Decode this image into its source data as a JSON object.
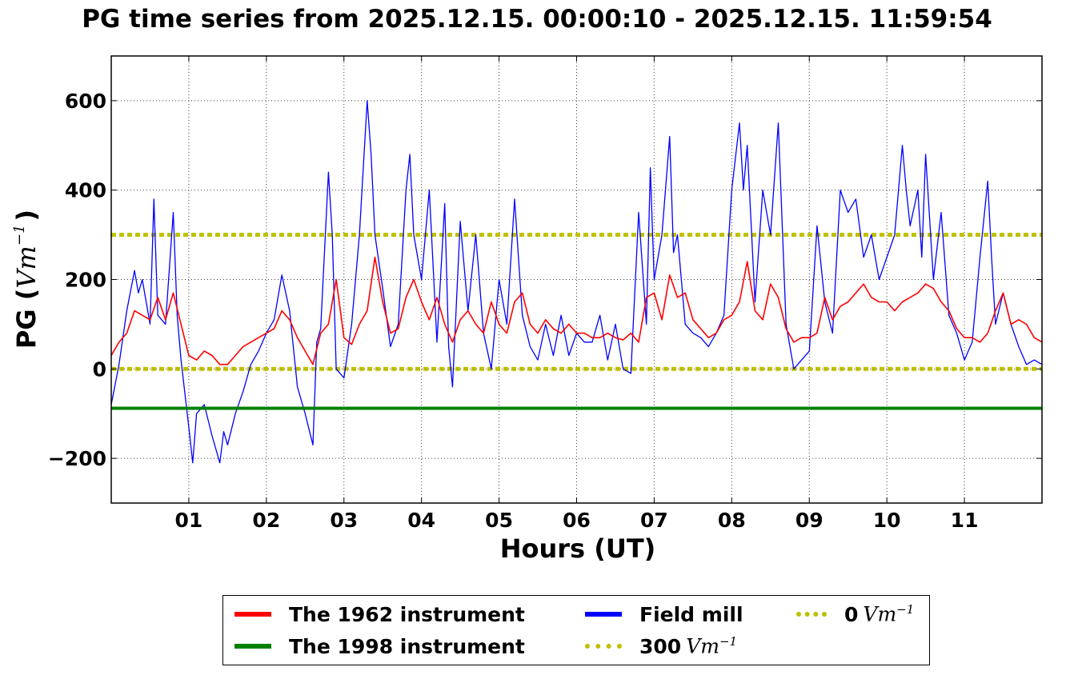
{
  "chart_data": {
    "type": "line",
    "title": "PG time series from 2025.12.15. 00:00:10 - 2025.12.15. 11:59:54",
    "xlabel": "Hours (UT)",
    "ylabel": "PG (Vm⁻¹)",
    "ylabel_main": "PG (",
    "ylabel_unit": "Vm",
    "ylabel_exp": "−1",
    "ylabel_close": ")",
    "xlim": [
      0,
      12
    ],
    "ylim": [
      -300,
      700
    ],
    "x_ticks": [
      1,
      2,
      3,
      4,
      5,
      6,
      7,
      8,
      9,
      10,
      11
    ],
    "x_tick_labels": [
      "01",
      "02",
      "03",
      "04",
      "05",
      "06",
      "07",
      "08",
      "09",
      "10",
      "11"
    ],
    "y_ticks": [
      -200,
      0,
      200,
      400,
      600
    ],
    "y_tick_labels": [
      "−200",
      "0",
      "200",
      "400",
      "600"
    ],
    "grid": true,
    "legend_position": "bottom-center",
    "series": [
      {
        "name": "The 1962 instrument",
        "color": "#ff0000",
        "x": [
          0.0,
          0.1,
          0.2,
          0.3,
          0.4,
          0.5,
          0.6,
          0.7,
          0.8,
          0.9,
          1.0,
          1.1,
          1.2,
          1.3,
          1.4,
          1.5,
          1.6,
          1.7,
          1.8,
          1.9,
          2.0,
          2.1,
          2.2,
          2.3,
          2.4,
          2.5,
          2.6,
          2.7,
          2.8,
          2.9,
          3.0,
          3.1,
          3.2,
          3.3,
          3.4,
          3.5,
          3.6,
          3.7,
          3.8,
          3.9,
          4.0,
          4.1,
          4.2,
          4.3,
          4.4,
          4.5,
          4.6,
          4.7,
          4.8,
          4.9,
          5.0,
          5.1,
          5.2,
          5.3,
          5.4,
          5.5,
          5.6,
          5.7,
          5.8,
          5.9,
          6.0,
          6.1,
          6.2,
          6.3,
          6.4,
          6.5,
          6.6,
          6.7,
          6.8,
          6.9,
          7.0,
          7.1,
          7.2,
          7.3,
          7.4,
          7.5,
          7.6,
          7.7,
          7.8,
          7.9,
          8.0,
          8.1,
          8.2,
          8.3,
          8.4,
          8.5,
          8.6,
          8.7,
          8.8,
          8.9,
          9.0,
          9.1,
          9.2,
          9.3,
          9.4,
          9.5,
          9.6,
          9.7,
          9.8,
          9.9,
          10.0,
          10.1,
          10.2,
          10.3,
          10.4,
          10.5,
          10.6,
          10.7,
          10.8,
          10.9,
          11.0,
          11.1,
          11.2,
          11.3,
          11.4,
          11.5,
          11.6,
          11.7,
          11.8,
          11.9,
          12.0
        ],
        "values": [
          30,
          60,
          80,
          130,
          120,
          110,
          160,
          110,
          170,
          100,
          30,
          20,
          40,
          30,
          10,
          10,
          30,
          50,
          60,
          70,
          80,
          90,
          130,
          110,
          70,
          40,
          10,
          80,
          100,
          200,
          70,
          55,
          100,
          130,
          250,
          150,
          80,
          90,
          160,
          200,
          150,
          110,
          160,
          100,
          60,
          110,
          130,
          100,
          80,
          150,
          100,
          80,
          150,
          170,
          100,
          80,
          110,
          90,
          80,
          100,
          80,
          80,
          70,
          70,
          80,
          70,
          65,
          80,
          60,
          160,
          170,
          110,
          210,
          160,
          170,
          110,
          90,
          70,
          80,
          110,
          120,
          150,
          240,
          130,
          110,
          190,
          160,
          90,
          60,
          70,
          70,
          80,
          160,
          110,
          140,
          150,
          170,
          190,
          160,
          150,
          150,
          130,
          150,
          160,
          170,
          190,
          180,
          150,
          130,
          90,
          70,
          70,
          60,
          80,
          130,
          170,
          100,
          110,
          100,
          70,
          60
        ]
      },
      {
        "name": "The 1998 instrument",
        "color": "#008000",
        "x": [
          0,
          12
        ],
        "values": [
          -88,
          -88
        ]
      },
      {
        "name": "Field mill",
        "color": "#0000ff",
        "x": [
          0.0,
          0.1,
          0.2,
          0.3,
          0.35,
          0.4,
          0.5,
          0.55,
          0.6,
          0.7,
          0.8,
          0.85,
          0.9,
          1.0,
          1.05,
          1.1,
          1.2,
          1.3,
          1.4,
          1.45,
          1.5,
          1.6,
          1.7,
          1.8,
          1.9,
          2.0,
          2.1,
          2.2,
          2.3,
          2.4,
          2.5,
          2.6,
          2.65,
          2.7,
          2.8,
          2.85,
          2.9,
          3.0,
          3.1,
          3.2,
          3.3,
          3.35,
          3.4,
          3.5,
          3.6,
          3.7,
          3.8,
          3.85,
          3.9,
          4.0,
          4.1,
          4.2,
          4.3,
          4.35,
          4.4,
          4.5,
          4.6,
          4.7,
          4.8,
          4.9,
          5.0,
          5.1,
          5.2,
          5.25,
          5.3,
          5.4,
          5.5,
          5.6,
          5.7,
          5.8,
          5.9,
          6.0,
          6.1,
          6.2,
          6.3,
          6.4,
          6.5,
          6.6,
          6.7,
          6.8,
          6.9,
          6.95,
          7.0,
          7.1,
          7.2,
          7.25,
          7.3,
          7.4,
          7.5,
          7.6,
          7.7,
          7.8,
          7.9,
          8.0,
          8.1,
          8.15,
          8.2,
          8.3,
          8.4,
          8.5,
          8.6,
          8.7,
          8.8,
          8.9,
          9.0,
          9.1,
          9.2,
          9.3,
          9.4,
          9.5,
          9.6,
          9.7,
          9.8,
          9.9,
          10.0,
          10.1,
          10.2,
          10.25,
          10.3,
          10.4,
          10.45,
          10.5,
          10.6,
          10.7,
          10.8,
          10.9,
          11.0,
          11.1,
          11.2,
          11.3,
          11.35,
          11.4,
          11.5,
          11.6,
          11.7,
          11.8,
          11.9,
          12.0
        ],
        "values": [
          -80,
          10,
          130,
          220,
          170,
          200,
          100,
          380,
          120,
          100,
          350,
          120,
          20,
          -130,
          -210,
          -100,
          -80,
          -150,
          -210,
          -140,
          -170,
          -100,
          -50,
          10,
          40,
          80,
          110,
          210,
          130,
          -40,
          -100,
          -170,
          60,
          90,
          440,
          300,
          0,
          -20,
          100,
          300,
          600,
          480,
          300,
          180,
          50,
          100,
          400,
          480,
          300,
          200,
          400,
          60,
          370,
          50,
          -40,
          330,
          130,
          300,
          80,
          0,
          200,
          100,
          380,
          250,
          120,
          50,
          20,
          100,
          30,
          120,
          30,
          80,
          60,
          60,
          120,
          20,
          100,
          0,
          -10,
          350,
          100,
          450,
          200,
          300,
          520,
          260,
          300,
          100,
          80,
          70,
          50,
          80,
          120,
          400,
          550,
          400,
          500,
          150,
          400,
          300,
          550,
          100,
          0,
          20,
          40,
          320,
          150,
          80,
          400,
          350,
          380,
          250,
          300,
          200,
          250,
          300,
          500,
          400,
          320,
          400,
          250,
          480,
          200,
          350,
          120,
          80,
          20,
          60,
          250,
          420,
          250,
          100,
          170,
          100,
          50,
          10,
          20,
          10
        ]
      },
      {
        "name": "300",
        "unit": "Vm",
        "unit_exp": "−1",
        "color": "#bfbf00",
        "x": [
          0,
          12
        ],
        "values": [
          300,
          300
        ]
      },
      {
        "name": "0",
        "unit": "Vm",
        "unit_exp": "−1",
        "color": "#bfbf00",
        "x": [
          0,
          12
        ],
        "values": [
          0,
          0
        ]
      }
    ]
  }
}
